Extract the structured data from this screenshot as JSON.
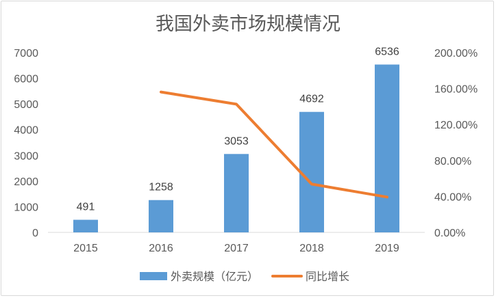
{
  "chart_data": {
    "type": "bar+line",
    "title": "我国外卖市场规模情况",
    "categories": [
      "2015",
      "2016",
      "2017",
      "2018",
      "2019"
    ],
    "series": [
      {
        "name": "外卖规模（亿元）",
        "type": "bar",
        "axis": "left",
        "values": [
          491,
          1258,
          3053,
          4692,
          6536
        ],
        "data_labels": [
          "491",
          "1258",
          "3053",
          "4692",
          "6536"
        ],
        "color": "#5b9bd5"
      },
      {
        "name": "同比增长",
        "type": "line",
        "axis": "right",
        "values": [
          null,
          156.2,
          142.7,
          53.7,
          39.3
        ],
        "color": "#ed7d31"
      }
    ],
    "left_axis": {
      "ylim": [
        0,
        7000
      ],
      "ticks": [
        "0",
        "1000",
        "2000",
        "3000",
        "4000",
        "5000",
        "6000",
        "7000"
      ]
    },
    "right_axis": {
      "ylim": [
        0,
        200
      ],
      "ticks": [
        "0.00%",
        "40.00%",
        "80.00%",
        "120.00%",
        "160.00%",
        "200.00%"
      ]
    },
    "grid": false,
    "legend": "bottom"
  }
}
